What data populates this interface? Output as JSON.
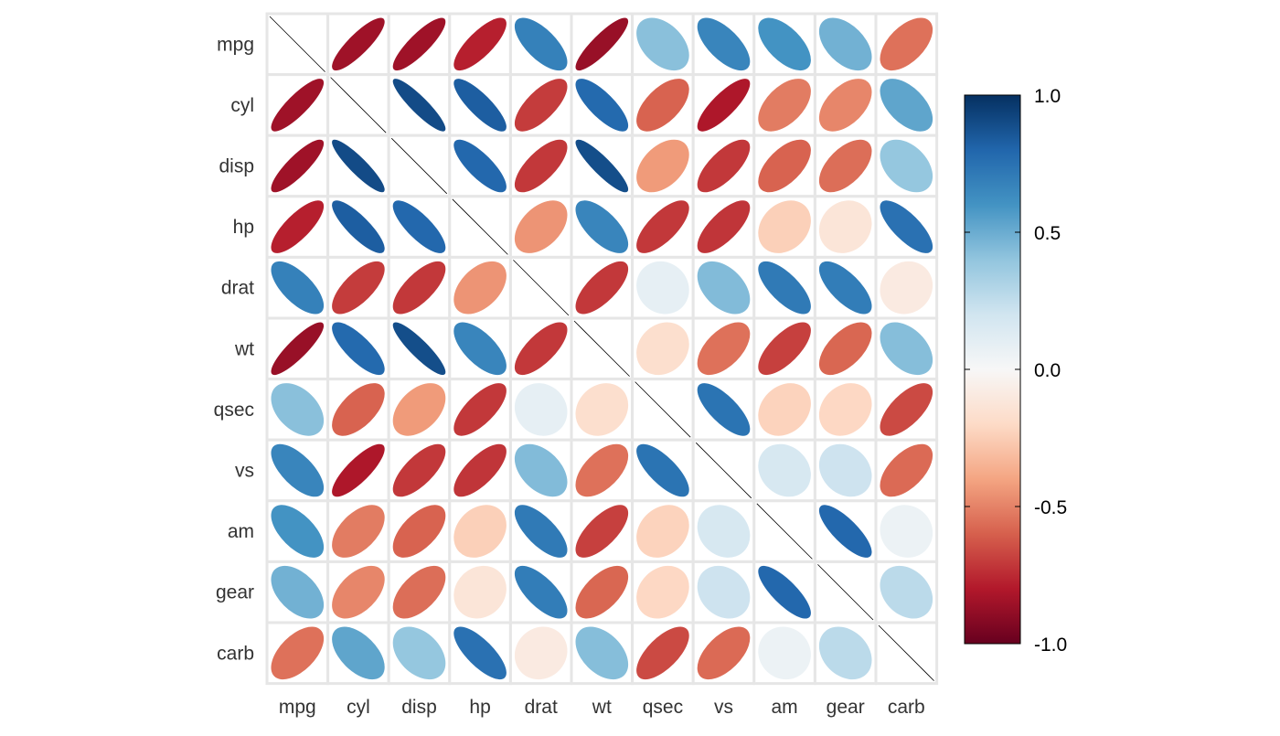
{
  "chart_data": {
    "type": "heatmap",
    "variables": [
      "mpg",
      "cyl",
      "disp",
      "hp",
      "drat",
      "wt",
      "qsec",
      "vs",
      "am",
      "gear",
      "carb"
    ],
    "matrix": [
      [
        1.0,
        -0.85,
        -0.85,
        -0.78,
        0.68,
        -0.87,
        0.42,
        0.66,
        0.6,
        0.48,
        -0.55
      ],
      [
        -0.85,
        1.0,
        0.9,
        0.83,
        -0.7,
        0.78,
        -0.59,
        -0.81,
        -0.52,
        -0.49,
        0.53
      ],
      [
        -0.85,
        0.9,
        1.0,
        0.79,
        -0.71,
        0.89,
        -0.43,
        -0.71,
        -0.59,
        -0.56,
        0.39
      ],
      [
        -0.78,
        0.83,
        0.79,
        1.0,
        -0.45,
        0.66,
        -0.71,
        -0.72,
        -0.24,
        -0.13,
        0.75
      ],
      [
        0.68,
        -0.7,
        -0.71,
        -0.45,
        1.0,
        -0.71,
        0.09,
        0.44,
        0.71,
        0.7,
        -0.09
      ],
      [
        -0.87,
        0.78,
        0.89,
        0.66,
        -0.71,
        1.0,
        -0.17,
        -0.55,
        -0.69,
        -0.58,
        0.43
      ],
      [
        0.42,
        -0.59,
        -0.43,
        -0.71,
        0.09,
        -0.17,
        1.0,
        0.74,
        -0.23,
        -0.21,
        -0.66
      ],
      [
        0.66,
        -0.81,
        -0.71,
        -0.72,
        0.44,
        -0.55,
        0.74,
        1.0,
        0.17,
        0.21,
        -0.57
      ],
      [
        0.6,
        -0.52,
        -0.59,
        -0.24,
        0.71,
        -0.69,
        -0.23,
        0.17,
        1.0,
        0.79,
        0.06
      ],
      [
        0.48,
        -0.49,
        -0.56,
        -0.13,
        0.7,
        -0.58,
        -0.21,
        0.21,
        0.79,
        1.0,
        0.27
      ],
      [
        -0.55,
        0.53,
        0.39,
        0.75,
        -0.09,
        0.43,
        -0.66,
        -0.57,
        0.06,
        0.27,
        1.0
      ]
    ],
    "diagonal_style": "line",
    "colorbar": {
      "range": [
        -1.0,
        1.0
      ],
      "ticks": [
        1.0,
        0.5,
        0.0,
        -0.5,
        -1.0
      ],
      "tick_labels": [
        "1.0",
        "0.5",
        "0.0",
        "-0.5",
        "-1.0"
      ],
      "colors": [
        "#67001F",
        "#B2182B",
        "#D6604D",
        "#F4A582",
        "#FDDBC7",
        "#F7F7F7",
        "#D1E5F0",
        "#92C5DE",
        "#4393C3",
        "#2166AC",
        "#053061"
      ]
    },
    "grid": true,
    "legend_position": "right"
  }
}
